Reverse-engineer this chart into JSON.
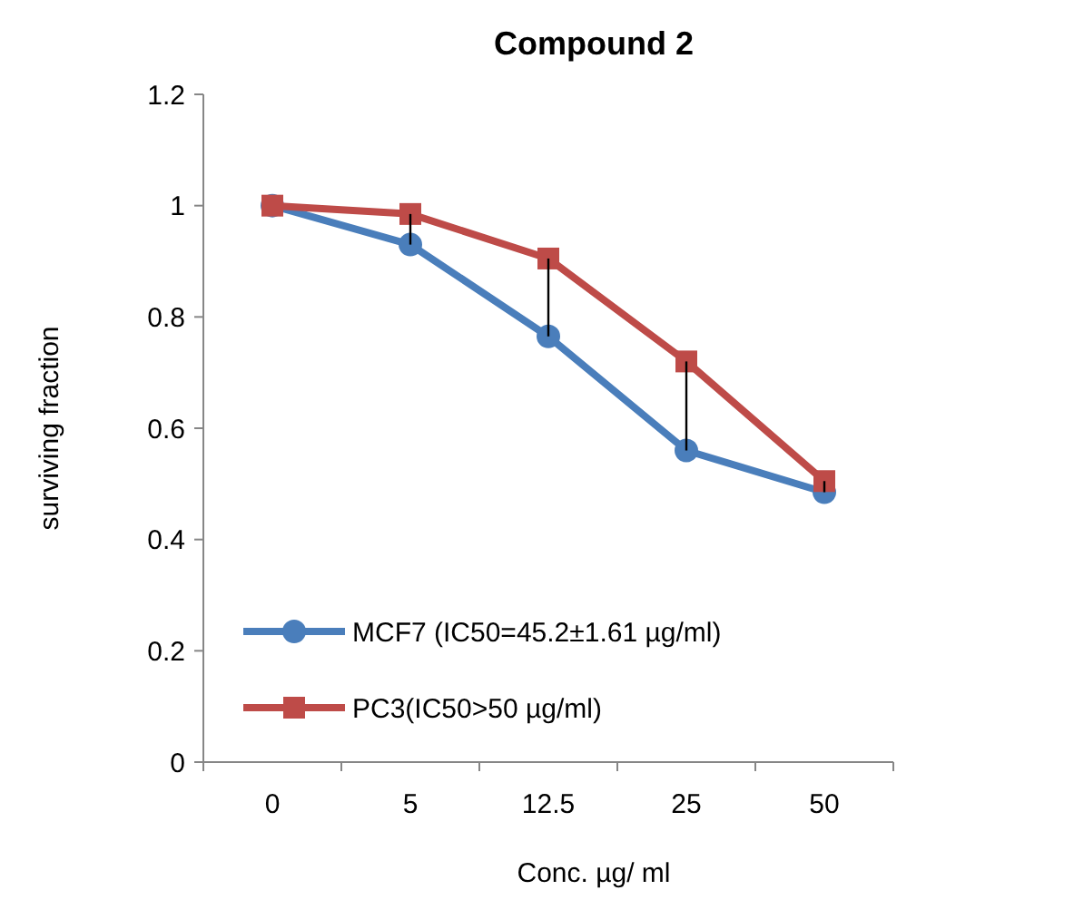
{
  "chart_data": {
    "type": "line",
    "title": "Compound 2",
    "xlabel": "Conc. µg/ ml",
    "ylabel": "surviving  fraction",
    "categories": [
      "0",
      "5",
      "12.5",
      "25",
      "50"
    ],
    "series": [
      {
        "name": "MCF7 (IC50=45.2±1.61 µg/ml)",
        "color": "#4a7ebb",
        "marker": "circle",
        "values": [
          1,
          0.93,
          0.765,
          0.56,
          0.485
        ],
        "errors": [
          null,
          [
            0.93,
            0.985
          ],
          [
            0.765,
            0.905
          ],
          [
            0.56,
            0.72
          ],
          [
            0.485,
            0.505
          ]
        ]
      },
      {
        "name": "PC3(IC50>50 µg/ml)",
        "color": "#be4b48",
        "marker": "square",
        "values": [
          1,
          0.985,
          0.905,
          0.72,
          0.505
        ]
      }
    ],
    "ylim": [
      0,
      1.2
    ],
    "yticks": [
      0,
      0.2,
      0.4,
      0.6,
      0.8,
      1,
      1.2
    ],
    "grid": false,
    "legend": "bottom left",
    "line_style": "solid"
  }
}
